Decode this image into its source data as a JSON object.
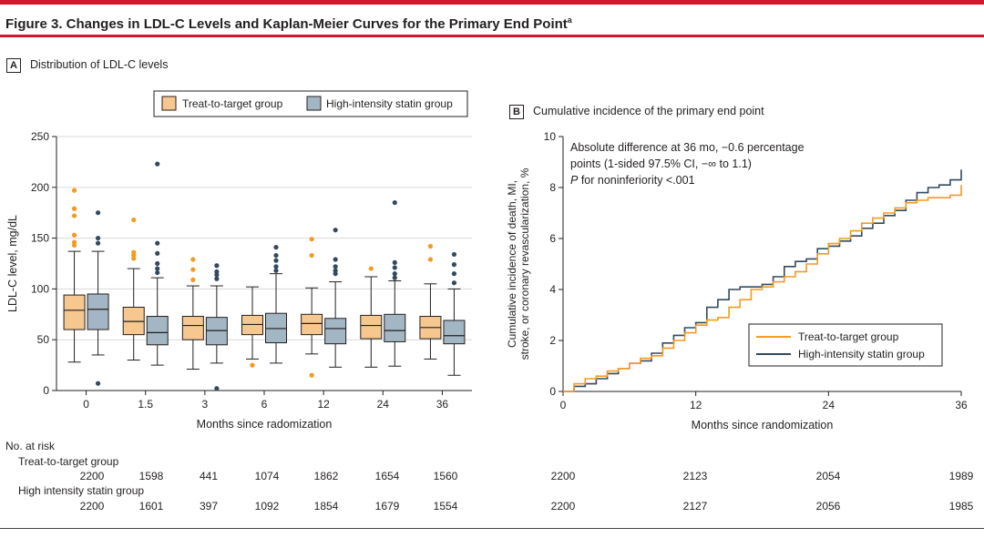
{
  "figure": {
    "title": "Figure 3. Changes in LDL-C Levels and Kaplan-Meier Curves for the Primary End Point",
    "title_superscript": "a",
    "accent_color": "#d6152d"
  },
  "colors": {
    "treat": "#f6c78f",
    "treat_dark": "#f39a1f",
    "high": "#a2b6c3",
    "high_dark": "#324a5e"
  },
  "chart_data": [
    {
      "type": "box",
      "panel_letter": "A",
      "title": "Distribution of LDL-C levels",
      "xlabel": "Months since radomization",
      "ylabel": "LDL-C level, mg/dL",
      "ylim": [
        0,
        250
      ],
      "yticks": [
        0,
        50,
        100,
        150,
        200,
        250
      ],
      "categories": [
        "0",
        "1.5",
        "3",
        "6",
        "12",
        "24",
        "36"
      ],
      "legend_position": "top",
      "series": [
        {
          "name": "Treat-to-target group",
          "boxes": [
            {
              "whisker_low": 28,
              "q1": 60,
              "median": 79,
              "q3": 94,
              "whisker_high": 137,
              "outliers": [
                143,
                146,
                153,
                172,
                179,
                197
              ]
            },
            {
              "whisker_low": 30,
              "q1": 55,
              "median": 68,
              "q3": 82,
              "whisker_high": 120,
              "outliers": [
                130,
                133,
                136,
                168
              ]
            },
            {
              "whisker_low": 21,
              "q1": 50,
              "median": 64,
              "q3": 73,
              "whisker_high": 103,
              "outliers": [
                109,
                119,
                129
              ]
            },
            {
              "whisker_low": 31,
              "q1": 55,
              "median": 65,
              "q3": 74,
              "whisker_high": 102,
              "outliers": [
                25
              ]
            },
            {
              "whisker_low": 36,
              "q1": 55,
              "median": 66,
              "q3": 75,
              "whisker_high": 101,
              "outliers": [
                15,
                133,
                149
              ]
            },
            {
              "whisker_low": 23,
              "q1": 51,
              "median": 64,
              "q3": 74,
              "whisker_high": 112,
              "outliers": [
                120
              ]
            },
            {
              "whisker_low": 31,
              "q1": 51,
              "median": 62,
              "q3": 73,
              "whisker_high": 105,
              "outliers": [
                129,
                142
              ]
            }
          ]
        },
        {
          "name": "High-intensity statin group",
          "boxes": [
            {
              "whisker_low": 35,
              "q1": 60,
              "median": 80,
              "q3": 95,
              "whisker_high": 137,
              "outliers": [
                7,
                145,
                150,
                175
              ]
            },
            {
              "whisker_low": 25,
              "q1": 45,
              "median": 57,
              "q3": 73,
              "whisker_high": 111,
              "outliers": [
                116,
                120,
                125,
                135,
                145,
                223
              ]
            },
            {
              "whisker_low": 27,
              "q1": 45,
              "median": 59,
              "q3": 72,
              "whisker_high": 103,
              "outliers": [
                2,
                110,
                114,
                117,
                123
              ]
            },
            {
              "whisker_low": 27,
              "q1": 47,
              "median": 61,
              "q3": 76,
              "whisker_high": 115,
              "outliers": [
                118,
                122,
                128,
                133,
                141
              ]
            },
            {
              "whisker_low": 23,
              "q1": 46,
              "median": 61,
              "q3": 71,
              "whisker_high": 107,
              "outliers": [
                115,
                118,
                122,
                129,
                158
              ]
            },
            {
              "whisker_low": 24,
              "q1": 48,
              "median": 59,
              "q3": 75,
              "whisker_high": 108,
              "outliers": [
                111,
                115,
                121,
                126,
                185
              ]
            },
            {
              "whisker_low": 15,
              "q1": 46,
              "median": 54,
              "q3": 69,
              "whisker_high": 100,
              "outliers": [
                106,
                115,
                124,
                134
              ]
            }
          ]
        }
      ]
    },
    {
      "type": "line",
      "panel_letter": "B",
      "title": "Cumulative incidence of the primary end point",
      "xlabel": "Months since randomization",
      "ylabel_line1": "Cumulative incidence of death, MI,",
      "ylabel_line2": "stroke, or coronary revascularization, %",
      "xlim": [
        0,
        36
      ],
      "ylim": [
        0,
        10
      ],
      "xticks": [
        0,
        12,
        24,
        36
      ],
      "yticks": [
        0,
        2,
        4,
        6,
        8,
        10
      ],
      "legend_position": "bottom-right",
      "annotation": {
        "line1": "Absolute difference at 36 mo, −0.6 percentage",
        "line2": "points (1-sided 97.5% CI, −∞ to 1.1)",
        "line3_italic": "P",
        "line3_rest": " for noninferiority <.001"
      },
      "series": [
        {
          "name": "Treat-to-target group",
          "x": [
            0,
            1,
            2,
            3,
            4,
            5,
            6,
            7,
            8,
            9,
            10,
            11,
            12,
            13,
            14,
            15,
            16,
            17,
            18,
            19,
            20,
            21,
            22,
            23,
            24,
            25,
            26,
            27,
            28,
            29,
            30,
            31,
            32,
            33,
            34,
            35,
            36
          ],
          "y": [
            0,
            0.3,
            0.5,
            0.6,
            0.8,
            0.9,
            1.1,
            1.3,
            1.4,
            1.7,
            2.0,
            2.3,
            2.6,
            2.8,
            2.9,
            3.3,
            3.6,
            4.0,
            4.1,
            4.3,
            4.5,
            4.7,
            5.0,
            5.4,
            5.8,
            6.0,
            6.3,
            6.6,
            6.8,
            7.0,
            7.2,
            7.4,
            7.5,
            7.6,
            7.6,
            7.7,
            8.1
          ]
        },
        {
          "name": "High-intensity statin group",
          "x": [
            0,
            1,
            2,
            3,
            4,
            5,
            6,
            7,
            8,
            9,
            10,
            11,
            12,
            13,
            14,
            15,
            16,
            17,
            18,
            19,
            20,
            21,
            22,
            23,
            24,
            25,
            26,
            27,
            28,
            29,
            30,
            31,
            32,
            33,
            34,
            35,
            36
          ],
          "y": [
            0,
            0.2,
            0.3,
            0.5,
            0.7,
            0.9,
            1.1,
            1.2,
            1.5,
            1.9,
            2.2,
            2.5,
            2.7,
            3.3,
            3.6,
            4.0,
            4.1,
            4.1,
            4.2,
            4.5,
            4.9,
            5.1,
            5.2,
            5.6,
            5.7,
            5.9,
            6.1,
            6.4,
            6.6,
            6.9,
            7.1,
            7.5,
            7.8,
            8.0,
            8.1,
            8.3,
            8.7
          ]
        }
      ]
    }
  ],
  "risk_table": {
    "title": "No. at risk",
    "groups": [
      {
        "label": "Treat-to-target group",
        "panel_a": [
          "2200",
          "1598",
          "441",
          "1074",
          "1862",
          "1654",
          "1560"
        ],
        "panel_b": [
          "2200",
          "2123",
          "2054",
          "1989"
        ]
      },
      {
        "label": "High intensity statin group",
        "panel_a": [
          "2200",
          "1601",
          "397",
          "1092",
          "1854",
          "1679",
          "1554"
        ],
        "panel_b": [
          "2200",
          "2127",
          "2056",
          "1985"
        ]
      }
    ]
  }
}
